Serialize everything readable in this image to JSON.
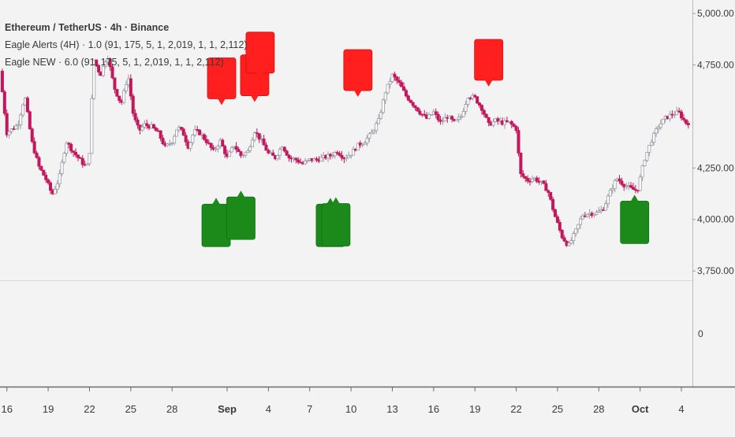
{
  "header": {
    "symbol_title": "Ethereum / TetherUS · 4h · Binance",
    "indicator_1": "Eagle Alerts (4H) · 1.0 (91, 175, 5, 1, 2,019, 1, 1, 2,112)",
    "indicator_2": "Eagle NEW · 6.0 (91, 175, 5, 1, 2,019, 1, 1, 2,112)"
  },
  "colors": {
    "up": "#9a9aa4",
    "down": "#c2185b",
    "sell_marker": "#ff1f1f",
    "buy_marker": "#1b8a1b",
    "axis_text": "#3a3a3a",
    "background": "#f3f3f4"
  },
  "chart_data": [
    {
      "type": "candlestick",
      "title": "Ethereum / TetherUS · 4h · Binance",
      "y_ticks": [
        {
          "value": 5000,
          "label": "5,000.00"
        },
        {
          "value": 4750,
          "label": "4,750.00"
        },
        {
          "value": 4250,
          "label": "4,250.00"
        },
        {
          "value": 4000,
          "label": "4,000.00"
        },
        {
          "value": 3750,
          "label": "3,750.00"
        }
      ],
      "ylim": [
        3720,
        5050
      ],
      "x_ticks": [
        {
          "day": 16,
          "label": "16"
        },
        {
          "day": 19,
          "label": "19"
        },
        {
          "day": 22,
          "label": "22"
        },
        {
          "day": 25,
          "label": "25"
        },
        {
          "day": 28,
          "label": "28"
        },
        {
          "day": 32,
          "label": "Sep",
          "bold": true
        },
        {
          "day": 35,
          "label": "4"
        },
        {
          "day": 38,
          "label": "7"
        },
        {
          "day": 41,
          "label": "10"
        },
        {
          "day": 44,
          "label": "13"
        },
        {
          "day": 47,
          "label": "16"
        },
        {
          "day": 50,
          "label": "19"
        },
        {
          "day": 53,
          "label": "22"
        },
        {
          "day": 56,
          "label": "25"
        },
        {
          "day": 59,
          "label": "28"
        },
        {
          "day": 62,
          "label": "Oct",
          "bold": true
        },
        {
          "day": 65,
          "label": "4"
        }
      ],
      "xlim": [
        15.5,
        65.8
      ],
      "price_path": [
        [
          15.5,
          4720
        ],
        [
          16.0,
          4420
        ],
        [
          16.8,
          4460
        ],
        [
          17.3,
          4600
        ],
        [
          17.8,
          4380
        ],
        [
          18.3,
          4260
        ],
        [
          18.8,
          4200
        ],
        [
          19.3,
          4120
        ],
        [
          19.8,
          4200
        ],
        [
          20.3,
          4380
        ],
        [
          20.8,
          4330
        ],
        [
          21.3,
          4290
        ],
        [
          21.8,
          4250
        ],
        [
          22.0,
          4330
        ],
        [
          22.3,
          4780
        ],
        [
          22.8,
          4700
        ],
        [
          23.3,
          4800
        ],
        [
          23.8,
          4640
        ],
        [
          24.3,
          4560
        ],
        [
          24.8,
          4700
        ],
        [
          25.2,
          4500
        ],
        [
          25.6,
          4430
        ],
        [
          26.0,
          4460
        ],
        [
          26.5,
          4450
        ],
        [
          27.0,
          4420
        ],
        [
          27.5,
          4350
        ],
        [
          28.0,
          4380
        ],
        [
          28.4,
          4450
        ],
        [
          28.8,
          4420
        ],
        [
          29.2,
          4350
        ],
        [
          29.6,
          4430
        ],
        [
          30.0,
          4420
        ],
        [
          30.5,
          4380
        ],
        [
          31.0,
          4330
        ],
        [
          31.5,
          4380
        ],
        [
          32.0,
          4300
        ],
        [
          32.5,
          4360
        ],
        [
          33.0,
          4310
        ],
        [
          33.5,
          4330
        ],
        [
          34.0,
          4430
        ],
        [
          34.5,
          4380
        ],
        [
          35.0,
          4320
        ],
        [
          35.5,
          4300
        ],
        [
          36.0,
          4360
        ],
        [
          36.5,
          4300
        ],
        [
          37.0,
          4290
        ],
        [
          37.5,
          4270
        ],
        [
          38.0,
          4290
        ],
        [
          38.5,
          4290
        ],
        [
          39.0,
          4300
        ],
        [
          39.5,
          4310
        ],
        [
          40.0,
          4330
        ],
        [
          40.5,
          4300
        ],
        [
          41.0,
          4320
        ],
        [
          41.5,
          4360
        ],
        [
          42.0,
          4380
        ],
        [
          42.5,
          4420
        ],
        [
          43.0,
          4480
        ],
        [
          43.5,
          4620
        ],
        [
          44.0,
          4700
        ],
        [
          44.5,
          4660
        ],
        [
          45.0,
          4600
        ],
        [
          45.5,
          4560
        ],
        [
          46.0,
          4520
        ],
        [
          46.5,
          4490
        ],
        [
          47.0,
          4520
        ],
        [
          47.5,
          4470
        ],
        [
          48.0,
          4500
        ],
        [
          48.5,
          4470
        ],
        [
          49.0,
          4500
        ],
        [
          49.5,
          4600
        ],
        [
          50.0,
          4590
        ],
        [
          50.5,
          4540
        ],
        [
          51.0,
          4460
        ],
        [
          51.5,
          4480
        ],
        [
          52.0,
          4470
        ],
        [
          52.5,
          4470
        ],
        [
          53.0,
          4440
        ],
        [
          53.3,
          4220
        ],
        [
          53.8,
          4190
        ],
        [
          54.3,
          4200
        ],
        [
          54.8,
          4180
        ],
        [
          55.3,
          4140
        ],
        [
          55.8,
          4020
        ],
        [
          56.3,
          3920
        ],
        [
          56.8,
          3870
        ],
        [
          57.3,
          3940
        ],
        [
          57.8,
          4020
        ],
        [
          58.3,
          4030
        ],
        [
          58.8,
          4030
        ],
        [
          59.3,
          4050
        ],
        [
          59.8,
          4130
        ],
        [
          60.3,
          4200
        ],
        [
          60.8,
          4170
        ],
        [
          61.3,
          4150
        ],
        [
          61.8,
          4140
        ],
        [
          62.3,
          4290
        ],
        [
          62.8,
          4380
        ],
        [
          63.3,
          4450
        ],
        [
          63.8,
          4490
        ],
        [
          64.3,
          4510
        ],
        [
          64.8,
          4520
        ],
        [
          65.3,
          4470
        ]
      ],
      "sell_signals": [
        {
          "day": 31.6,
          "price": 4555
        },
        {
          "day": 34.0,
          "price": 4570
        },
        {
          "day": 34.4,
          "price": 4680
        },
        {
          "day": 41.5,
          "price": 4595
        },
        {
          "day": 51.0,
          "price": 4645
        }
      ],
      "buy_signals": [
        {
          "day": 31.2,
          "price": 4105
        },
        {
          "day": 33.0,
          "price": 4140
        },
        {
          "day": 39.5,
          "price": 4105
        },
        {
          "day": 39.9,
          "price": 4108
        },
        {
          "day": 61.6,
          "price": 4120
        }
      ]
    },
    {
      "type": "line",
      "title": "",
      "y_ticks": [
        {
          "value": 0,
          "label": "0"
        }
      ],
      "series": []
    }
  ]
}
